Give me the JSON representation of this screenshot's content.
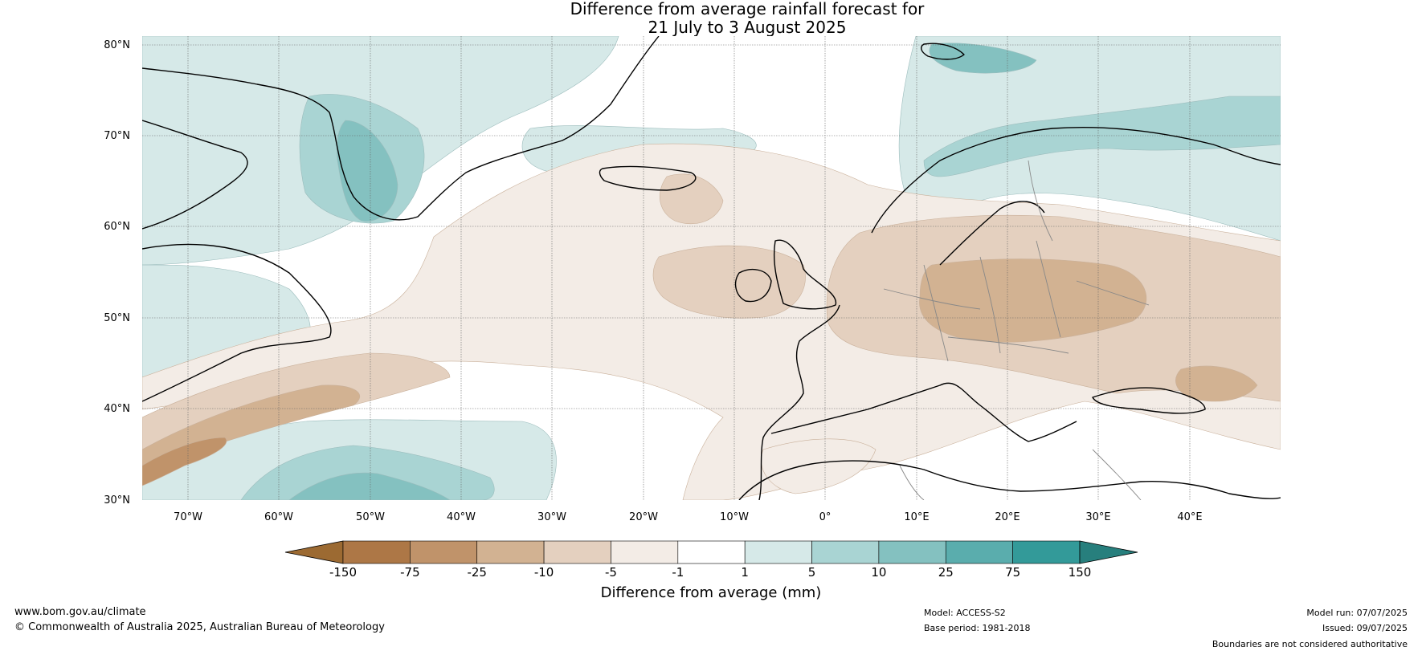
{
  "title": {
    "line1": "Difference from average rainfall forecast for",
    "line2": "21 July to 3 August 2025"
  },
  "map": {
    "lat_labels": [
      "80°N",
      "70°N",
      "60°N",
      "50°N",
      "40°N",
      "30°N"
    ],
    "lon_labels": [
      "70°W",
      "60°W",
      "50°W",
      "40°W",
      "30°W",
      "20°W",
      "10°W",
      "0°",
      "10°E",
      "20°E",
      "30°E",
      "40°E"
    ],
    "lat_range": [
      30,
      81
    ],
    "lon_range": [
      -75,
      50
    ]
  },
  "colorbar": {
    "label": "Difference from average (mm)",
    "tick_labels": [
      "-150",
      "-75",
      "-25",
      "-10",
      "-5",
      "-1",
      "1",
      "5",
      "10",
      "25",
      "75",
      "150"
    ],
    "colors": [
      "#9c6a32",
      "#ad7746",
      "#c0936a",
      "#d2b292",
      "#e4d0bf",
      "#f3ece6",
      "#ffffff",
      "#d6e9e8",
      "#a9d4d3",
      "#84c1c0",
      "#5aadad",
      "#339a99",
      "#277f7d"
    ]
  },
  "footer": {
    "website": "www.bom.gov.au/climate",
    "copyright": "© Commonwealth of Australia 2025, Australian Bureau of Meteorology",
    "model": "Model: ACCESS-S2",
    "base_period": "Base period: 1981-2018",
    "model_run": "Model run: 07/07/2025",
    "issued": "Issued: 09/07/2025",
    "disclaimer": "Boundaries are not considered authoritative"
  }
}
